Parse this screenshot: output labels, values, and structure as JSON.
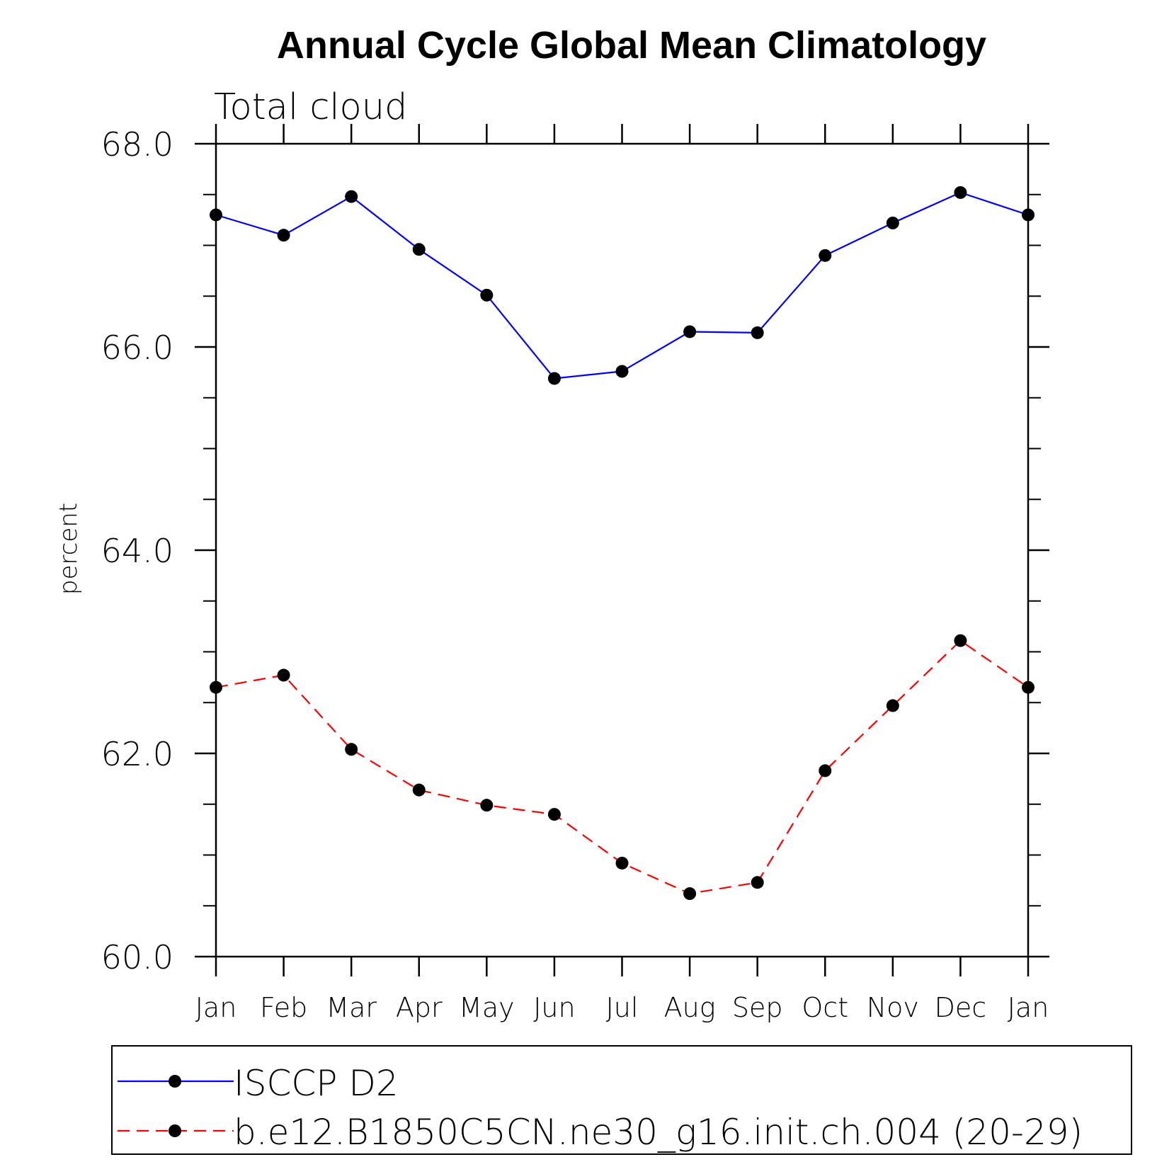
{
  "chart_data": {
    "type": "line",
    "title": "Annual Cycle Global Mean Climatology",
    "subtitle": "Total cloud",
    "xlabel": "",
    "ylabel": "percent",
    "categories": [
      "Jan",
      "Feb",
      "Mar",
      "Apr",
      "May",
      "Jun",
      "Jul",
      "Aug",
      "Sep",
      "Oct",
      "Nov",
      "Dec",
      "Jan"
    ],
    "ylim": [
      60,
      68
    ],
    "yticks": [
      "60.0",
      "62.0",
      "64.0",
      "66.0",
      "68.0"
    ],
    "grid": false,
    "legend_position": "bottom",
    "series": [
      {
        "name": "ISCCP D2",
        "color": "#0000ff",
        "dash": "solid",
        "marker": "dot",
        "values": [
          67.3,
          67.1,
          67.48,
          66.96,
          66.51,
          65.69,
          65.76,
          66.15,
          66.14,
          66.9,
          67.22,
          67.52,
          67.3
        ]
      },
      {
        "name": "b.e12.B1850C5CN.ne30_g16.init.ch.004 (20-29)",
        "color": "#ff0000",
        "dash": "dashed",
        "marker": "dot",
        "values": [
          62.65,
          62.77,
          62.04,
          61.64,
          61.49,
          61.4,
          60.92,
          60.62,
          60.73,
          61.83,
          62.47,
          63.11,
          62.65
        ]
      }
    ]
  }
}
